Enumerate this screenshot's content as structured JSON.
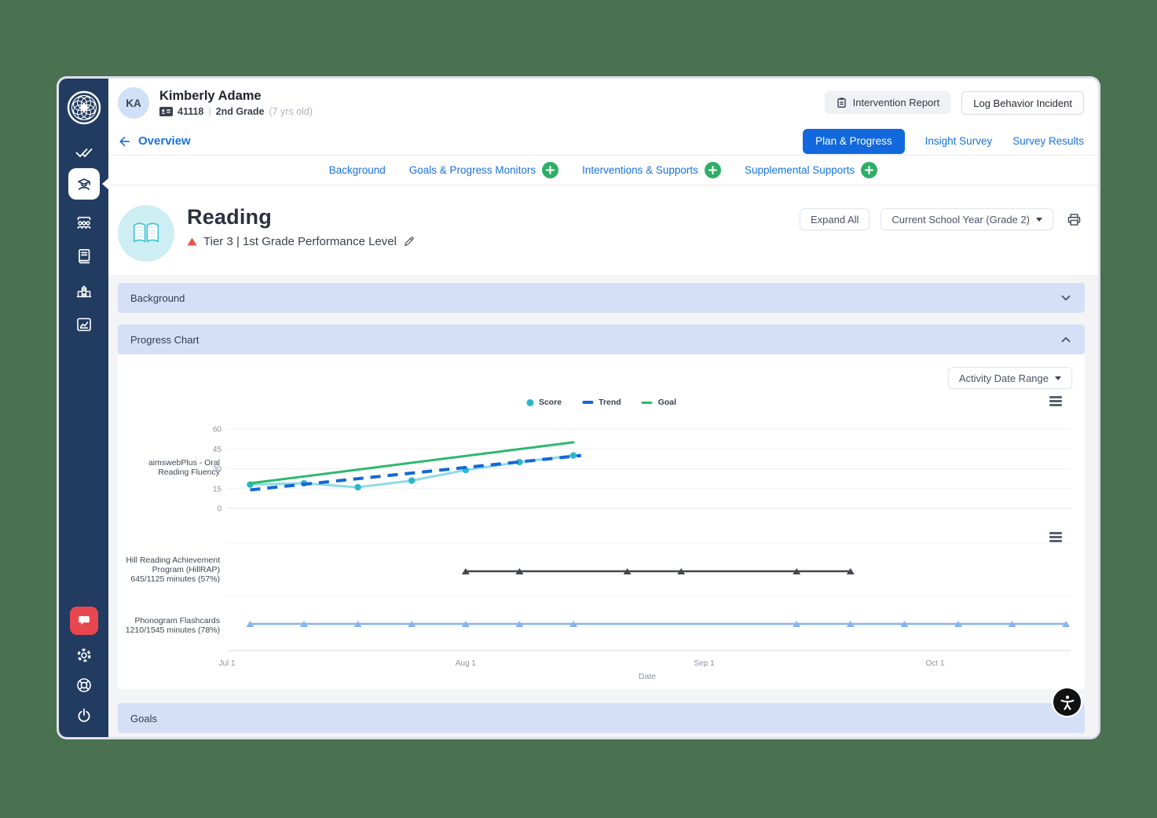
{
  "colors": {
    "sidebar_navy": "#223c61",
    "accent_blue": "#1872e4",
    "active_tab_blue": "#1268dd",
    "add_green": "#2fae68",
    "section_bar_blue": "#d5e0f7",
    "tier_red": "#e8554e",
    "chat_red": "#e8474f"
  },
  "header": {
    "avatar_initials": "KA",
    "student_name": "Kimberly Adame",
    "student_id": "41118",
    "separator": "|",
    "grade": "2nd Grade",
    "age_note": "(7 yrs old)",
    "buttons": {
      "intervention_report": "Intervention Report",
      "log_behavior": "Log Behavior Incident"
    },
    "back_link": "Overview",
    "tabs": [
      {
        "label": "Plan & Progress",
        "active": true
      },
      {
        "label": "Insight Survey",
        "active": false
      },
      {
        "label": "Survey Results",
        "active": false
      }
    ]
  },
  "subnav": {
    "items": [
      {
        "label": "Background",
        "add_button": false
      },
      {
        "label": "Goals & Progress Monitors",
        "add_button": true
      },
      {
        "label": "Interventions & Supports",
        "add_button": true
      },
      {
        "label": "Supplemental Supports",
        "add_button": true
      }
    ]
  },
  "reading": {
    "title": "Reading",
    "tier": "Tier 3 | 1st Grade Performance Level",
    "controls": {
      "expand_all": "Expand All",
      "year_select": "Current School Year (Grade 2)"
    }
  },
  "sections": {
    "background": "Background",
    "progress_chart": "Progress Chart",
    "goals": "Goals"
  },
  "chart_controls": {
    "date_range": "Activity Date Range"
  },
  "chart_data": [
    {
      "type": "line",
      "series_label": "aimswebPlus - Oral Reading Fluency",
      "xlabel": "Date",
      "x_ticks": [
        "Jul 1",
        "Aug 1",
        "Sep 1",
        "Oct 1"
      ],
      "y_ticks": [
        0,
        15,
        30,
        45,
        60
      ],
      "ylim": [
        0,
        60
      ],
      "legend_position": "top-center",
      "series": [
        {
          "name": "Score",
          "style": "points",
          "color_line": "#8edbe4",
          "color_dot": "#2cb7cf",
          "dates": [
            "Jul 4",
            "Jul 11",
            "Jul 18",
            "Jul 25",
            "Aug 1",
            "Aug 8",
            "Aug 15"
          ],
          "values": [
            18,
            19,
            16,
            21,
            29,
            35,
            40
          ]
        },
        {
          "name": "Trend",
          "style": "dashed",
          "color_line": "#1467d8",
          "dates": [
            "Jul 4",
            "Aug 16"
          ],
          "values": [
            14,
            40
          ]
        },
        {
          "name": "Goal",
          "style": "solid",
          "color_line": "#2cb96e",
          "dates": [
            "Jul 4",
            "Aug 15"
          ],
          "values": [
            19,
            50
          ]
        }
      ]
    },
    {
      "type": "timeline",
      "xlabel": "Date",
      "x_ticks": [
        "Jul 1",
        "Aug 1",
        "Sep 1",
        "Oct 1"
      ],
      "rows": [
        {
          "label": "Hill Reading Achievement Program (HillRAP)",
          "sublabel": "645/1125 minutes (57%)",
          "color": "#44474f",
          "dates": [
            "Aug 1",
            "Aug 8",
            "Aug 22",
            "Aug 29",
            "Sep 13",
            "Sep 20"
          ]
        },
        {
          "label": "Phonogram Flashcards",
          "sublabel": "1210/1545 minutes (78%)",
          "color": "#84b4ec",
          "dates": [
            "Jul 4",
            "Jul 11",
            "Jul 18",
            "Jul 25",
            "Aug 1",
            "Aug 8",
            "Aug 15",
            "Sep 13",
            "Sep 20",
            "Sep 27",
            "Oct 4",
            "Oct 11",
            "Oct 18"
          ]
        }
      ]
    }
  ]
}
